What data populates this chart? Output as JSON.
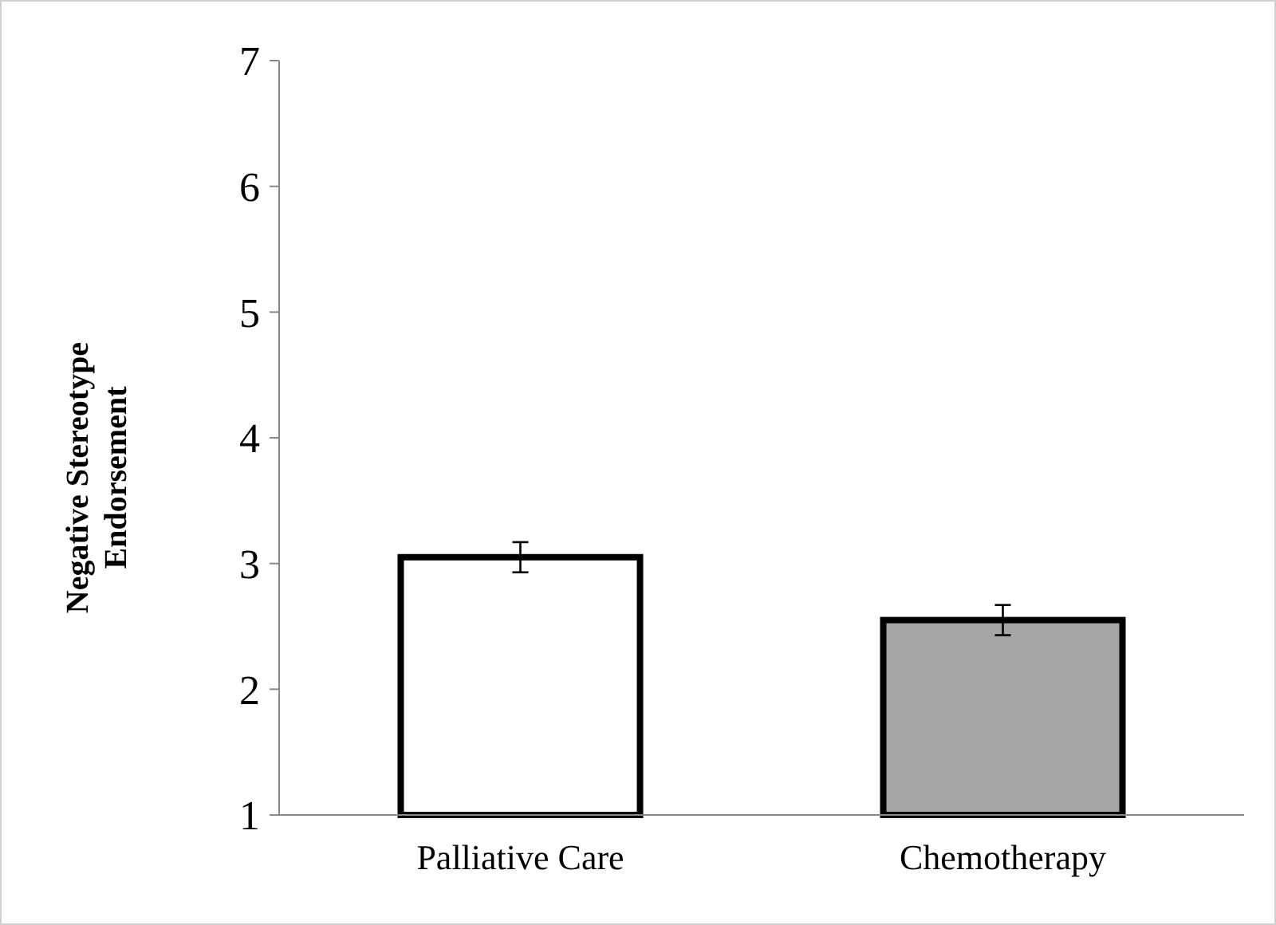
{
  "chart_data": {
    "type": "bar",
    "ylabel": "Negative Stereotype Endorsement",
    "categories": [
      "Palliative Care",
      "Chemotherapy"
    ],
    "values": [
      3.05,
      2.55
    ],
    "colors": [
      "#ffffff",
      "#a6a6a6"
    ],
    "errors": [
      0.12,
      0.12
    ],
    "ylim": [
      1,
      7
    ],
    "yticks": [
      1,
      2,
      3,
      4,
      5,
      6,
      7
    ],
    "grid": false
  }
}
